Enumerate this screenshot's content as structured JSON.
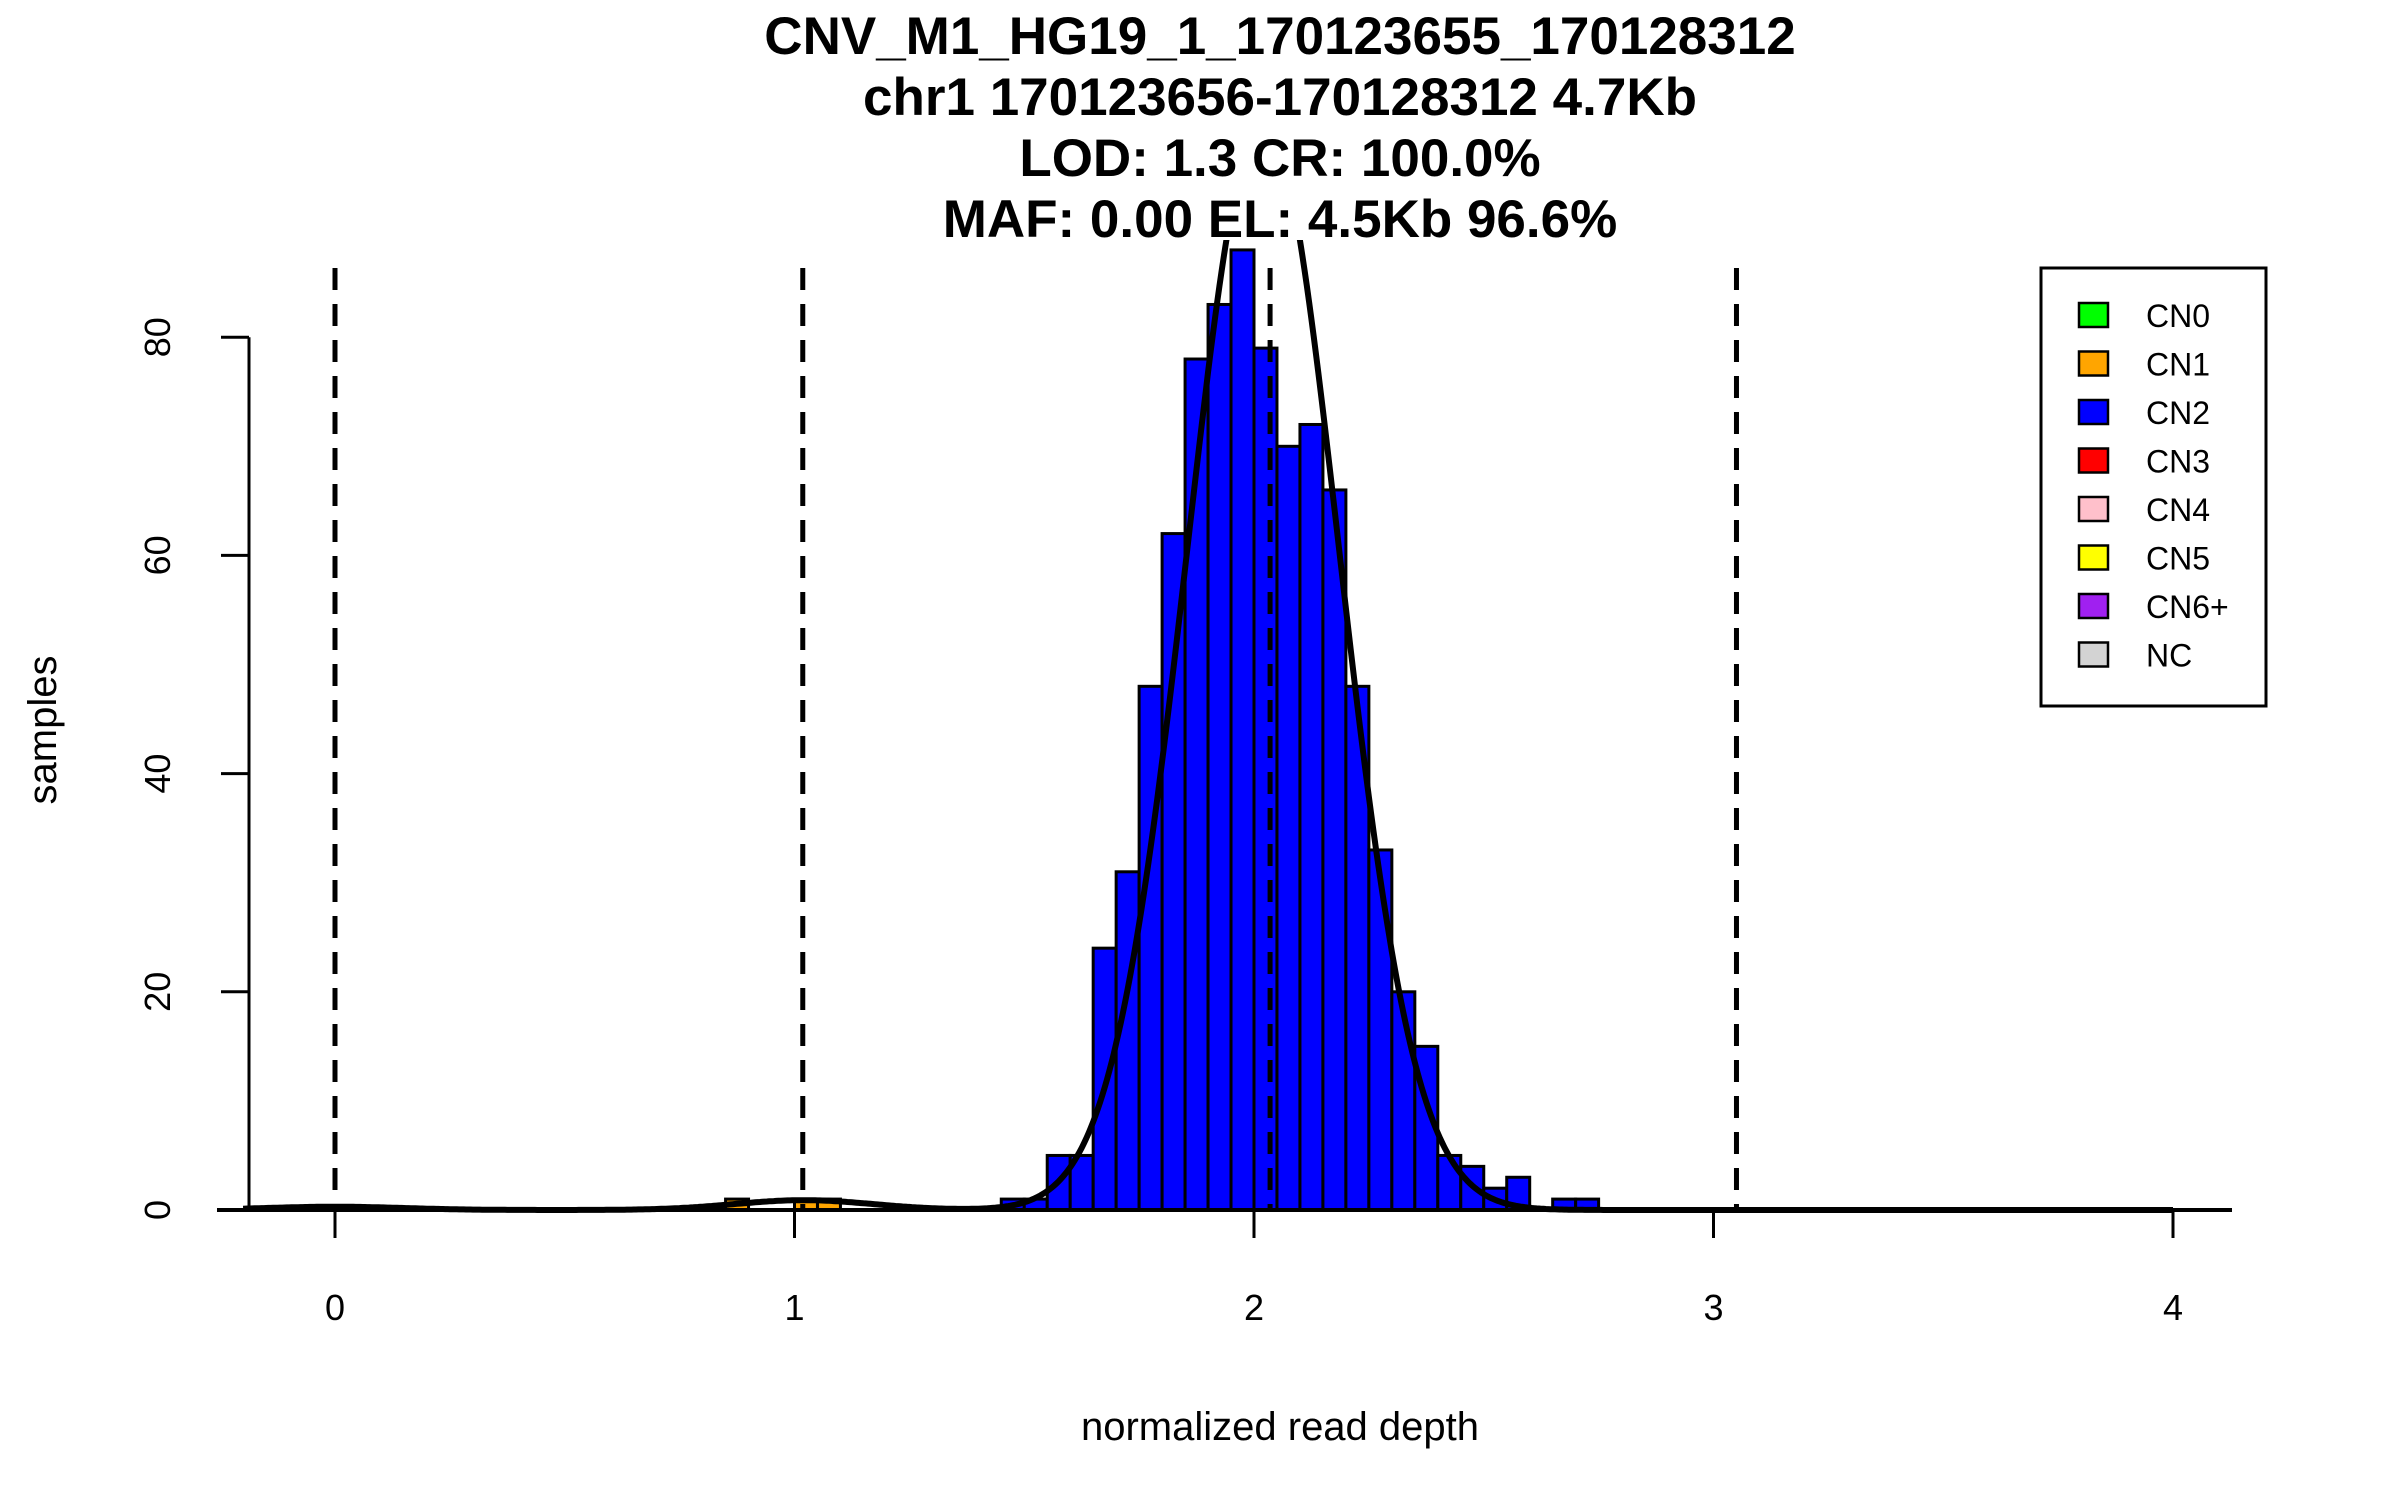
{
  "chart_data": {
    "type": "bar",
    "title_lines": [
      "CNV_M1_HG19_1_170123655_170128312",
      "chr1 170123656-170128312 4.7Kb",
      "LOD: 1.3 CR: 100.0%",
      "MAF: 0.00 EL: 4.5Kb 96.6%"
    ],
    "xlabel": "normalized read depth",
    "ylabel": "samples",
    "xlim": [
      -0.2,
      4.1
    ],
    "ylim": [
      0,
      88
    ],
    "xticks": [
      "0",
      "1",
      "2",
      "3",
      "4"
    ],
    "yticks": [
      "0",
      "20",
      "40",
      "60",
      "80"
    ],
    "bin_width": 0.05,
    "bins": [
      {
        "start": 0.85,
        "count": 1,
        "class": "CN1"
      },
      {
        "start": 1.0,
        "count": 1,
        "class": "CN1"
      },
      {
        "start": 1.05,
        "count": 1,
        "class": "CN1"
      },
      {
        "start": 1.45,
        "count": 1,
        "class": "CN2"
      },
      {
        "start": 1.5,
        "count": 1,
        "class": "CN2"
      },
      {
        "start": 1.55,
        "count": 5,
        "class": "CN2"
      },
      {
        "start": 1.6,
        "count": 5,
        "class": "CN2"
      },
      {
        "start": 1.65,
        "count": 24,
        "class": "CN2"
      },
      {
        "start": 1.7,
        "count": 31,
        "class": "CN2"
      },
      {
        "start": 1.75,
        "count": 48,
        "class": "CN2"
      },
      {
        "start": 1.8,
        "count": 62,
        "class": "CN2"
      },
      {
        "start": 1.85,
        "count": 78,
        "class": "CN2"
      },
      {
        "start": 1.9,
        "count": 83,
        "class": "CN2"
      },
      {
        "start": 1.95,
        "count": 88,
        "class": "CN2"
      },
      {
        "start": 2.0,
        "count": 79,
        "class": "CN2"
      },
      {
        "start": 2.05,
        "count": 70,
        "class": "CN2"
      },
      {
        "start": 2.1,
        "count": 72,
        "class": "CN2"
      },
      {
        "start": 2.15,
        "count": 66,
        "class": "CN2"
      },
      {
        "start": 2.2,
        "count": 48,
        "class": "CN2"
      },
      {
        "start": 2.25,
        "count": 33,
        "class": "CN2"
      },
      {
        "start": 2.3,
        "count": 20,
        "class": "CN2"
      },
      {
        "start": 2.35,
        "count": 15,
        "class": "CN2"
      },
      {
        "start": 2.4,
        "count": 5,
        "class": "CN2"
      },
      {
        "start": 2.45,
        "count": 4,
        "class": "CN2"
      },
      {
        "start": 2.5,
        "count": 2,
        "class": "CN2"
      },
      {
        "start": 2.55,
        "count": 3,
        "class": "CN2"
      },
      {
        "start": 2.65,
        "count": 1,
        "class": "CN2"
      },
      {
        "start": 2.7,
        "count": 1,
        "class": "CN2"
      }
    ],
    "cutoffs": [
      0.0,
      1.018,
      2.035,
      3.05
    ],
    "fit_components": [
      {
        "mean": 0.0,
        "sd": 0.15,
        "peak": 0.3
      },
      {
        "mean": 1.02,
        "sd": 0.15,
        "peak": 0.9
      },
      {
        "mean": 2.02,
        "sd": 0.165,
        "peak": 100
      }
    ],
    "legend": {
      "placement": "top-right",
      "entries": [
        {
          "label": "CN0",
          "color": "#00ff00"
        },
        {
          "label": "CN1",
          "color": "#ffa500"
        },
        {
          "label": "CN2",
          "color": "#0000ff"
        },
        {
          "label": "CN3",
          "color": "#ff0000"
        },
        {
          "label": "CN4",
          "color": "#ffc0cb"
        },
        {
          "label": "CN5",
          "color": "#ffff00"
        },
        {
          "label": "CN6+",
          "color": "#a020f0"
        },
        {
          "label": "NC",
          "color": "#d3d3d3"
        }
      ]
    }
  }
}
